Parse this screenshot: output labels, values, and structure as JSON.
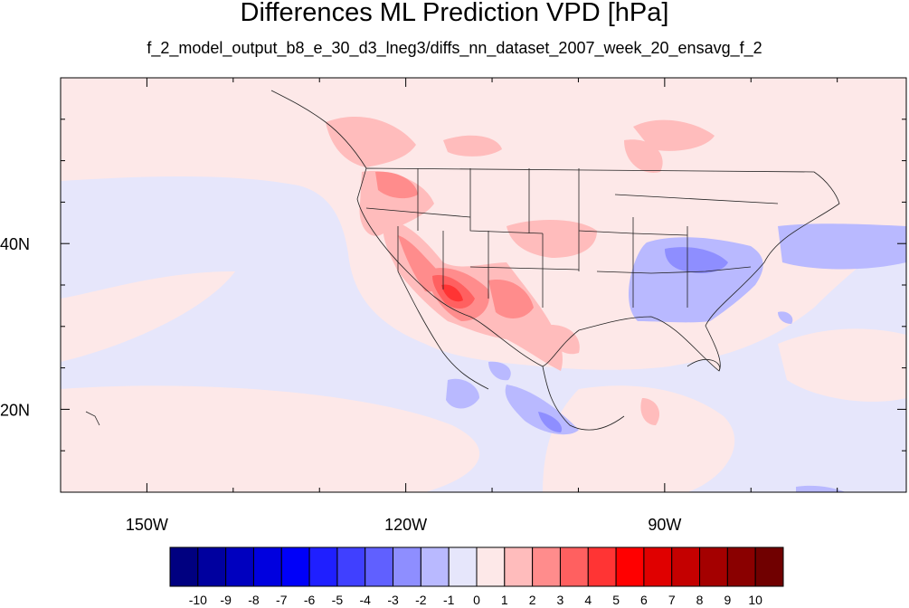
{
  "title": "Differences ML Prediction VPD [hPa]",
  "subtitle": "f_2_model_output_b8_e_30_d3_lneg3/diffs_nn_dataset_2007_week_20_ensavg_f_2",
  "map": {
    "lon_range": [
      -160,
      -62
    ],
    "lat_range": [
      10,
      60
    ],
    "background_color": "#fde8e8",
    "x_ticks": [
      {
        "label": "150W",
        "value": -150
      },
      {
        "label": "120W",
        "value": -120
      },
      {
        "label": "90W",
        "value": -90
      }
    ],
    "y_ticks": [
      {
        "label": "40N",
        "value": 40
      },
      {
        "label": "20N",
        "value": 20
      }
    ]
  },
  "colorbar": {
    "labels": [
      "-10",
      "-9",
      "-8",
      "-7",
      "-6",
      "-5",
      "-4",
      "-3",
      "-2",
      "-1",
      "0",
      "1",
      "2",
      "3",
      "4",
      "5",
      "6",
      "7",
      "8",
      "9",
      "10"
    ],
    "colors": [
      "#000080",
      "#00009f",
      "#0000bf",
      "#0000df",
      "#0000f9",
      "#1f1fff",
      "#4040ff",
      "#6060ff",
      "#8e8eff",
      "#b9b9ff",
      "#e6e6fb",
      "#fde8e8",
      "#ffbcbc",
      "#ff8c8c",
      "#ff6060",
      "#ff3434",
      "#ff0000",
      "#e00000",
      "#c40000",
      "#a40000",
      "#8a0000",
      "#700000"
    ]
  }
}
